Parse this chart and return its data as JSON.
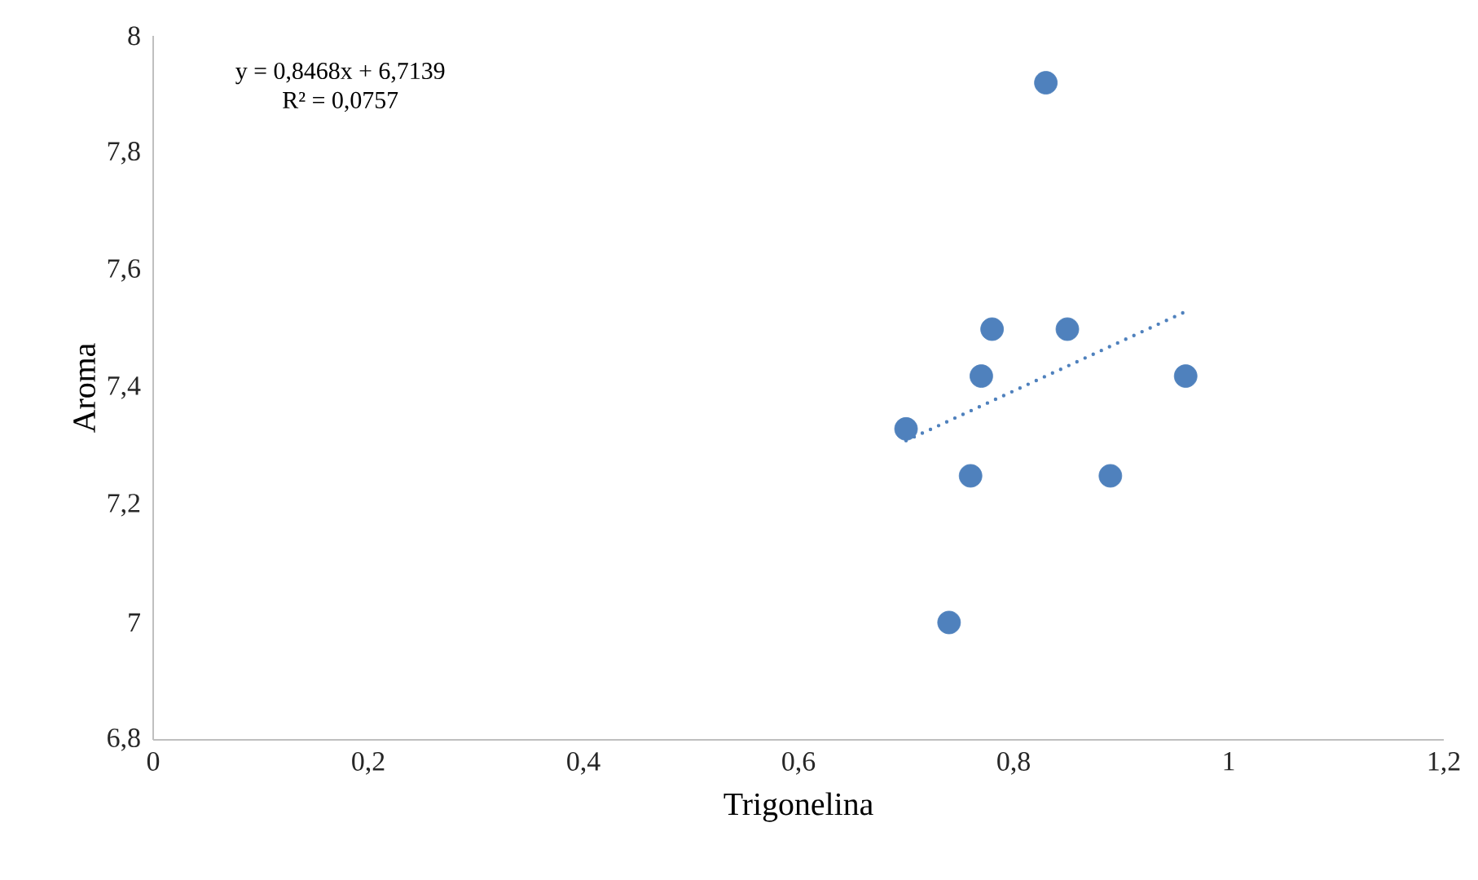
{
  "chart_data": {
    "type": "scatter",
    "xlabel": "Trigonelina",
    "ylabel": "Aroma",
    "annotations": [
      "y = 0,8468x + 6,7139",
      "R² = 0,0757"
    ],
    "series": [
      {
        "color": "#4f81bd",
        "marker": "circle",
        "x": [
          0.83,
          0.78,
          0.85,
          0.77,
          0.96,
          0.7,
          0.76,
          0.89,
          0.74
        ],
        "values": [
          7.92,
          7.5,
          7.5,
          7.42,
          7.42,
          7.33,
          7.25,
          7.25,
          7.0
        ]
      },
      {
        "type": "line",
        "color": "#4f81bd",
        "line_style": "dotted",
        "x": [
          0.7,
          0.96
        ],
        "values": [
          7.31,
          7.53
        ]
      }
    ],
    "xlim": [
      0,
      1.2
    ],
    "ylim": [
      6.8,
      8
    ],
    "xticks": [
      {
        "value": 0,
        "label": "0"
      },
      {
        "value": 0.2,
        "label": "0,2"
      },
      {
        "value": 0.4,
        "label": "0,4"
      },
      {
        "value": 0.6,
        "label": "0,6"
      },
      {
        "value": 0.8,
        "label": "0,8"
      },
      {
        "value": 1,
        "label": "1"
      },
      {
        "value": 1.2,
        "label": "1,2"
      }
    ],
    "yticks": [
      {
        "value": 6.8,
        "label": "6,8"
      },
      {
        "value": 7,
        "label": "7"
      },
      {
        "value": 7.2,
        "label": "7,2"
      },
      {
        "value": 7.4,
        "label": "7,4"
      },
      {
        "value": 7.6,
        "label": "7,6"
      },
      {
        "value": 7.8,
        "label": "7,8"
      },
      {
        "value": 8,
        "label": "8"
      }
    ],
    "grid": false,
    "legend": false
  }
}
